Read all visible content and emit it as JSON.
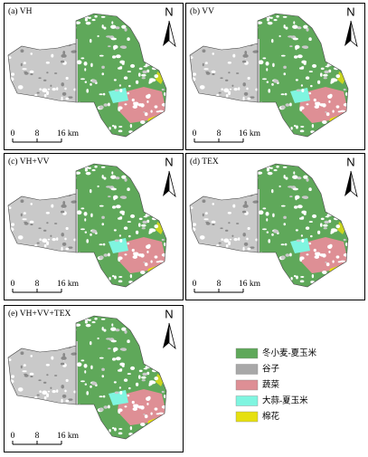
{
  "panels": [
    {
      "label": "(a) VH"
    },
    {
      "label": "(b) VV"
    },
    {
      "label": "(c) VH+VV"
    },
    {
      "label": "(d) TEX"
    },
    {
      "label": "(e) VH+VV+TEX"
    }
  ],
  "north": "N",
  "scale_bar": [
    "0",
    "8",
    "16 km"
  ],
  "legend": [
    {
      "name": "冬小麦-夏玉米",
      "color": "#5fa85a"
    },
    {
      "name": "谷子",
      "color": "#a8a8a8"
    },
    {
      "name": "蔬菜",
      "color": "#de8f95"
    },
    {
      "name": "大蒜-夏玉米",
      "color": "#7ff5e0"
    },
    {
      "name": "棉花",
      "color": "#e6e010"
    }
  ]
}
